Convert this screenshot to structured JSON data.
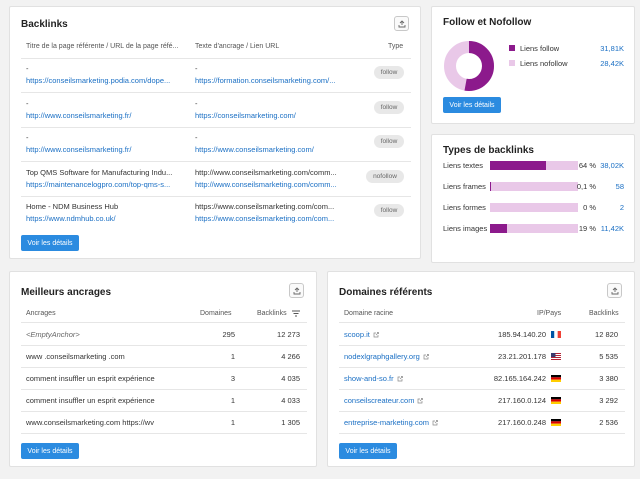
{
  "backlinks": {
    "title": "Backlinks",
    "headers": [
      "Titre de la page référente / URL de la page réfé...",
      "Texte d'ancrage / Lien URL",
      "Type"
    ],
    "rows": [
      {
        "title": "-",
        "url": "https://conseilsmarketing.podia.com/dope...",
        "anchor": "-",
        "anchor_url": "https://formation.conseilsmarketing.com/...",
        "type": "follow"
      },
      {
        "title": "-",
        "url": "http://www.conseilsmarketing.fr/",
        "anchor": "-",
        "anchor_url": "https://conseilsmarketing.com/",
        "type": "follow"
      },
      {
        "title": "-",
        "url": "http://www.conseilsmarketing.fr/",
        "anchor": "-",
        "anchor_url": "https://www.conseilsmarketing.com/",
        "type": "follow"
      },
      {
        "title": "Top QMS Software for Manufacturing Indu...",
        "url": "https://maintenancelogpro.com/top-qms-s...",
        "anchor": "http://www.conseilsmarketing.com/comm...",
        "anchor_url": "http://www.conseilsmarketing.com/comm...",
        "type": "nofollow"
      },
      {
        "title": "Home - NDM Business Hub",
        "url": "https://www.ndmhub.co.uk/",
        "anchor": "https://www.conseilsmarketing.com/com...",
        "anchor_url": "https://www.conseilsmarketing.com/com...",
        "type": "follow"
      }
    ],
    "button": "Voir les détails"
  },
  "follow": {
    "title": "Follow et Nofollow",
    "items": [
      {
        "label": "Liens follow",
        "value": "31,81K",
        "color": "#8c1a8c",
        "fraction": 0.528
      },
      {
        "label": "Liens nofollow",
        "value": "28,42K",
        "color": "#e9c8e8",
        "fraction": 0.472
      }
    ],
    "button": "Voir les détails"
  },
  "types": {
    "title": "Types de backlinks",
    "items": [
      {
        "label": "Liens textes",
        "pct": "64 %",
        "value": "38,02K",
        "fraction": 0.64
      },
      {
        "label": "Liens frames",
        "pct": "0,1 %",
        "value": "58",
        "fraction": 0.001
      },
      {
        "label": "Liens formes",
        "pct": "0 %",
        "value": "2",
        "fraction": 0
      },
      {
        "label": "Liens images",
        "pct": "19 %",
        "value": "11,42K",
        "fraction": 0.19
      }
    ]
  },
  "anchors": {
    "title": "Meilleurs ancrages",
    "headers": [
      "Ancrages",
      "Domaines",
      "Backlinks"
    ],
    "rows": [
      {
        "anchor": "<EmptyAnchor>",
        "domains": "295",
        "backlinks": "12 273"
      },
      {
        "anchor": "www .conseilsmarketing .com",
        "domains": "1",
        "backlinks": "4 266"
      },
      {
        "anchor": "comment insuffler un esprit expérience",
        "domains": "3",
        "backlinks": "4 035"
      },
      {
        "anchor": "comment insuffler un esprit expérience",
        "domains": "1",
        "backlinks": "4 033"
      },
      {
        "anchor": "www.conseilsmarketing.com https://wv",
        "domains": "1",
        "backlinks": "1 305"
      }
    ],
    "button": "Voir les détails"
  },
  "domains": {
    "title": "Domaines référents",
    "headers": [
      "Domaine racine",
      "IP/Pays",
      "Backlinks"
    ],
    "rows": [
      {
        "domain": "scoop.it",
        "ip": "185.94.140.20",
        "flag": "fr",
        "backlinks": "12 820"
      },
      {
        "domain": "nodexlgraphgallery.org",
        "ip": "23.21.201.178",
        "flag": "us",
        "backlinks": "5 535"
      },
      {
        "domain": "show-and-so.fr",
        "ip": "82.165.164.242",
        "flag": "de",
        "backlinks": "3 380"
      },
      {
        "domain": "conseilscreateur.com",
        "ip": "217.160.0.124",
        "flag": "de",
        "backlinks": "3 292"
      },
      {
        "domain": "entreprise-marketing.com",
        "ip": "217.160.0.248",
        "flag": "de",
        "backlinks": "2 536"
      }
    ],
    "button": "Voir les détails"
  }
}
